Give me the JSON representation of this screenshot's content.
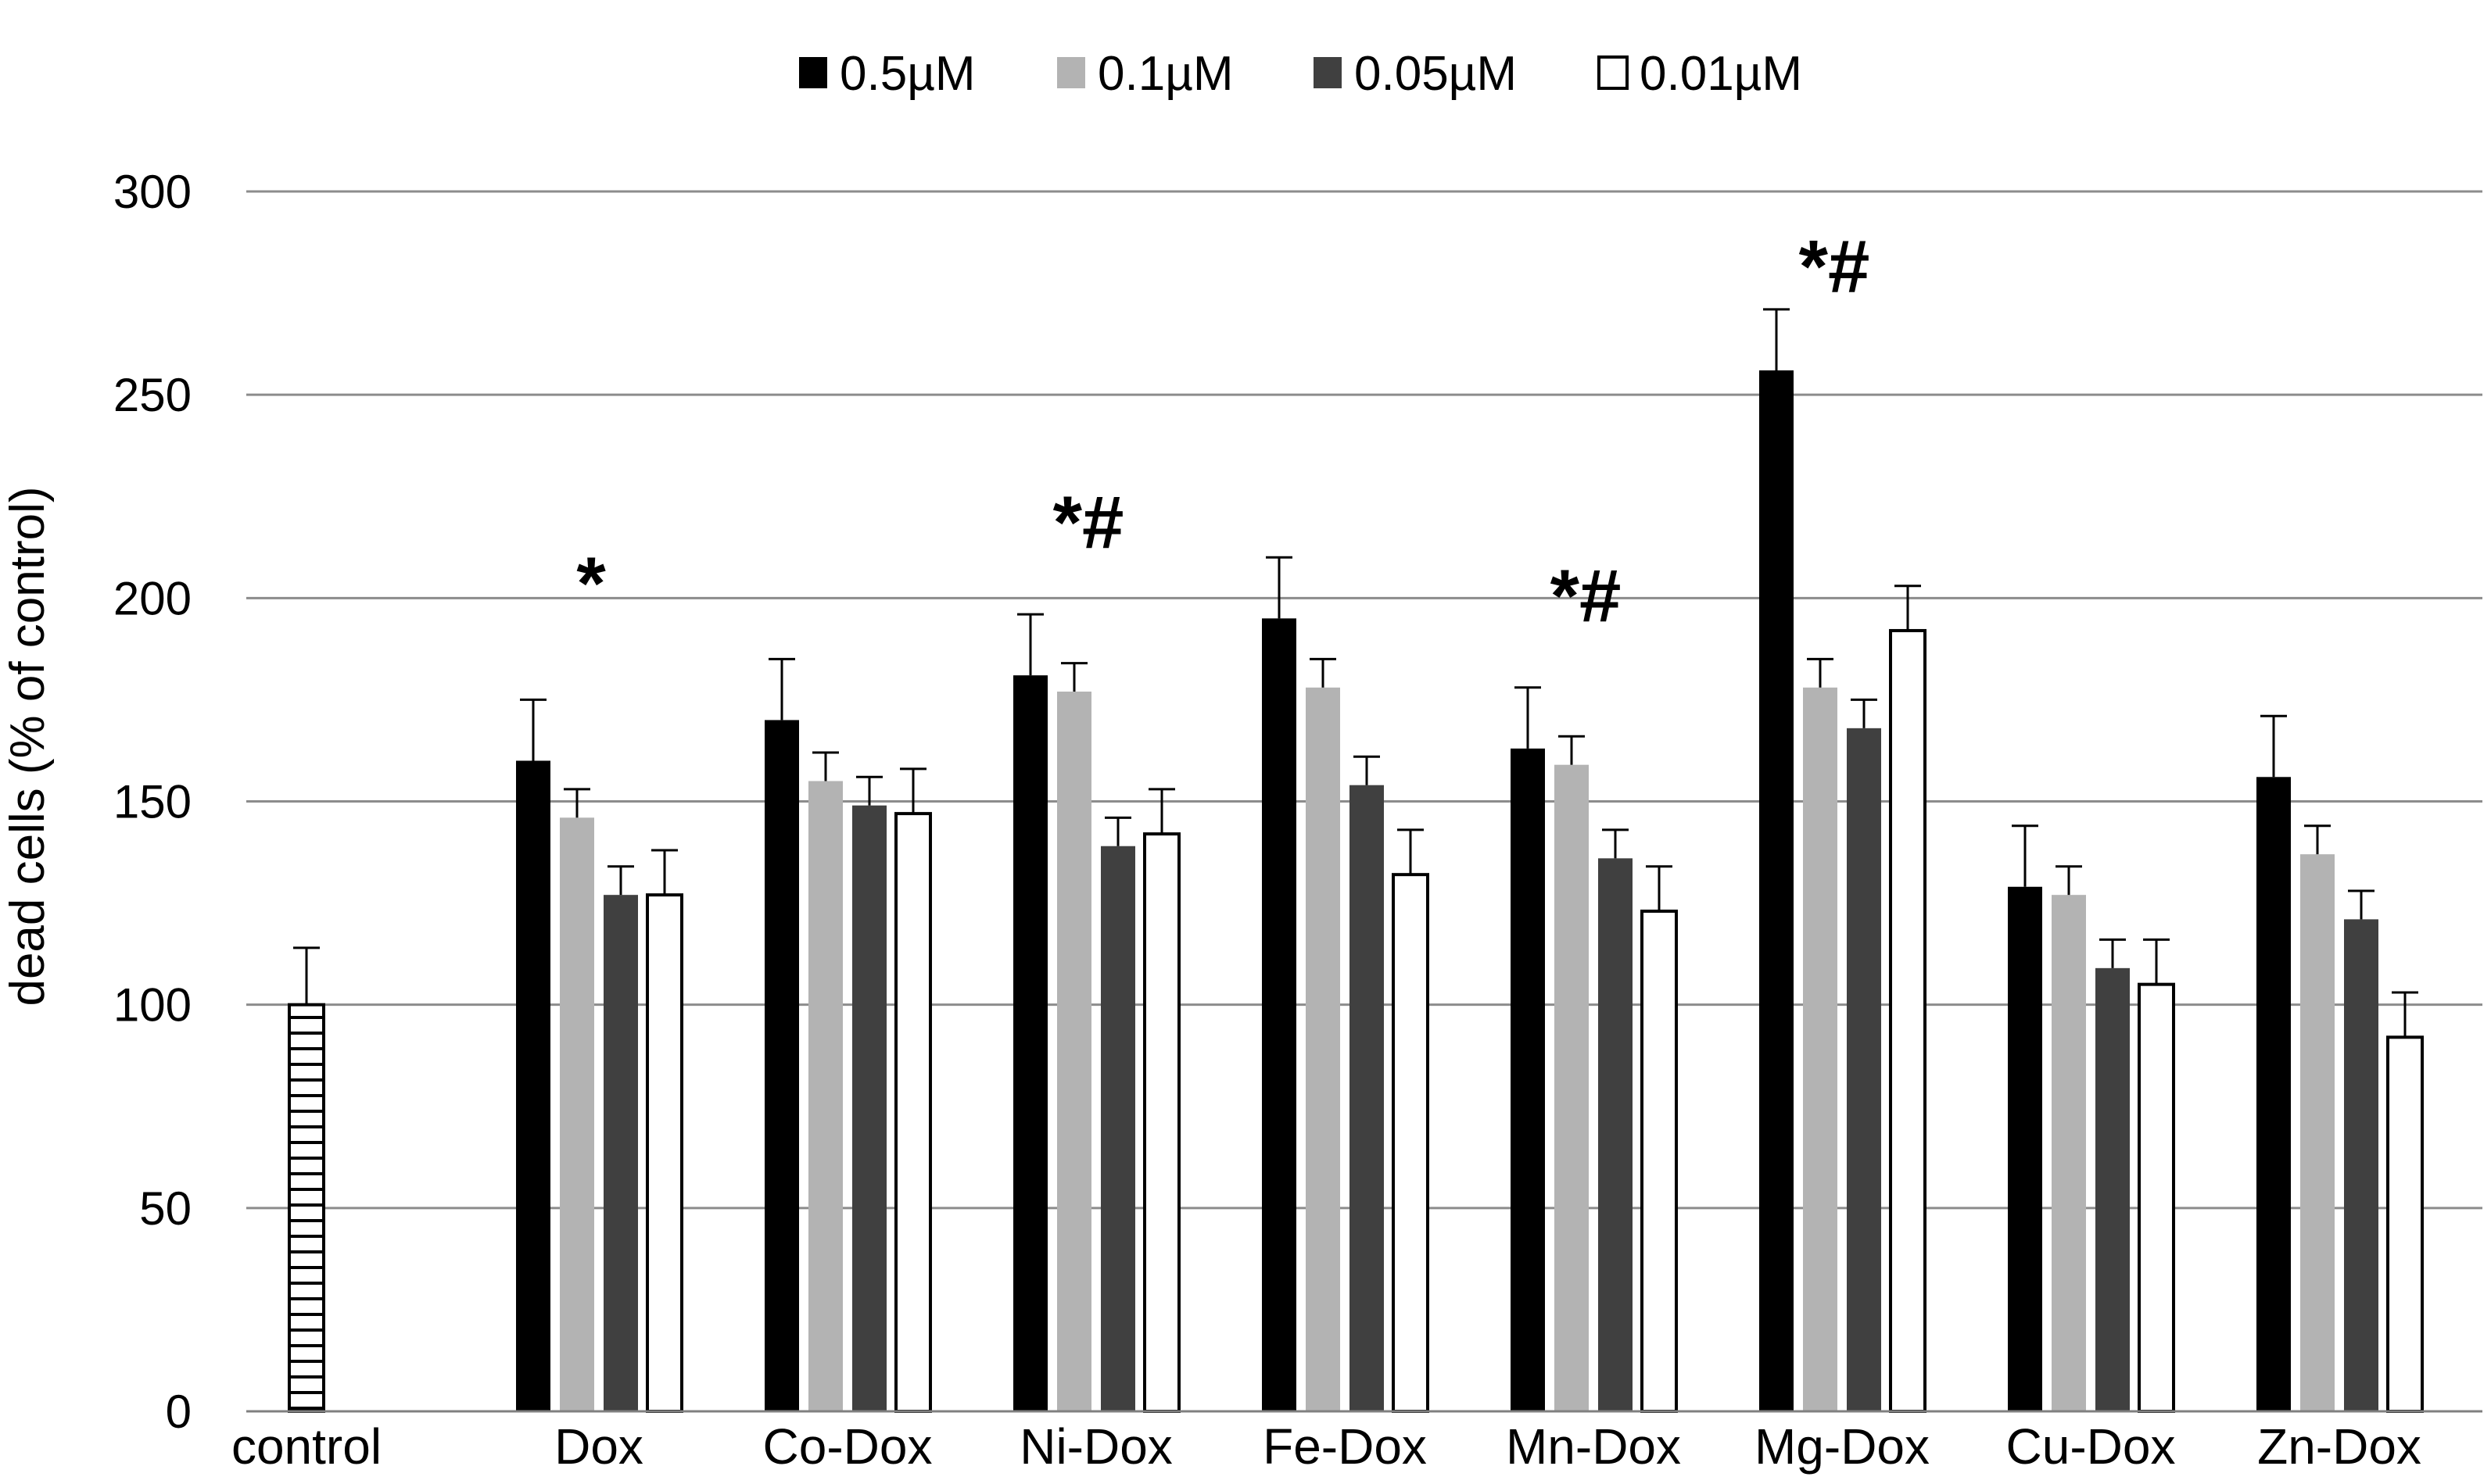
{
  "chart_data": {
    "type": "bar",
    "title": "",
    "xlabel": "",
    "ylabel": "dead cells (% of control)",
    "ylim": [
      0,
      300
    ],
    "yticks": [
      0,
      50,
      100,
      150,
      200,
      250,
      300
    ],
    "grid": true,
    "legend_position": "top-center",
    "control": {
      "label": "control",
      "value": 100,
      "error": 14,
      "pattern": "horizontal-stripes"
    },
    "categories": [
      "Dox",
      "Co-Dox",
      "Ni-Dox",
      "Fe-Dox",
      "Mn-Dox",
      "Mg-Dox",
      "Cu-Dox",
      "Zn-Dox"
    ],
    "series": [
      {
        "name": "0.5µM",
        "color": "#000000",
        "values": [
          160,
          170,
          181,
          195,
          163,
          256,
          129,
          156
        ],
        "errors": [
          15,
          15,
          15,
          15,
          15,
          15,
          15,
          15
        ]
      },
      {
        "name": "0.1µM",
        "color": "#b3b3b3",
        "values": [
          146,
          155,
          177,
          178,
          159,
          178,
          127,
          137
        ],
        "errors": [
          7,
          7,
          7,
          7,
          7,
          7,
          7,
          7
        ]
      },
      {
        "name": "0.05µM",
        "color": "#404040",
        "values": [
          127,
          149,
          139,
          154,
          136,
          168,
          109,
          121
        ],
        "errors": [
          7,
          7,
          7,
          7,
          7,
          7,
          7,
          7
        ]
      },
      {
        "name": "0.01µM",
        "color": "#ffffff",
        "values": [
          127,
          147,
          142,
          132,
          123,
          192,
          105,
          92
        ],
        "errors": [
          11,
          11,
          11,
          11,
          11,
          11,
          11,
          11
        ]
      }
    ],
    "annotations": [
      {
        "text": "*",
        "category": "Dox",
        "y": 203
      },
      {
        "text": "*#",
        "category": "Ni-Dox",
        "y": 218
      },
      {
        "text": "*#",
        "category": "Mn-Dox",
        "y": 200
      },
      {
        "text": "*#",
        "category": "Mg-Dox",
        "y": 281
      }
    ]
  }
}
